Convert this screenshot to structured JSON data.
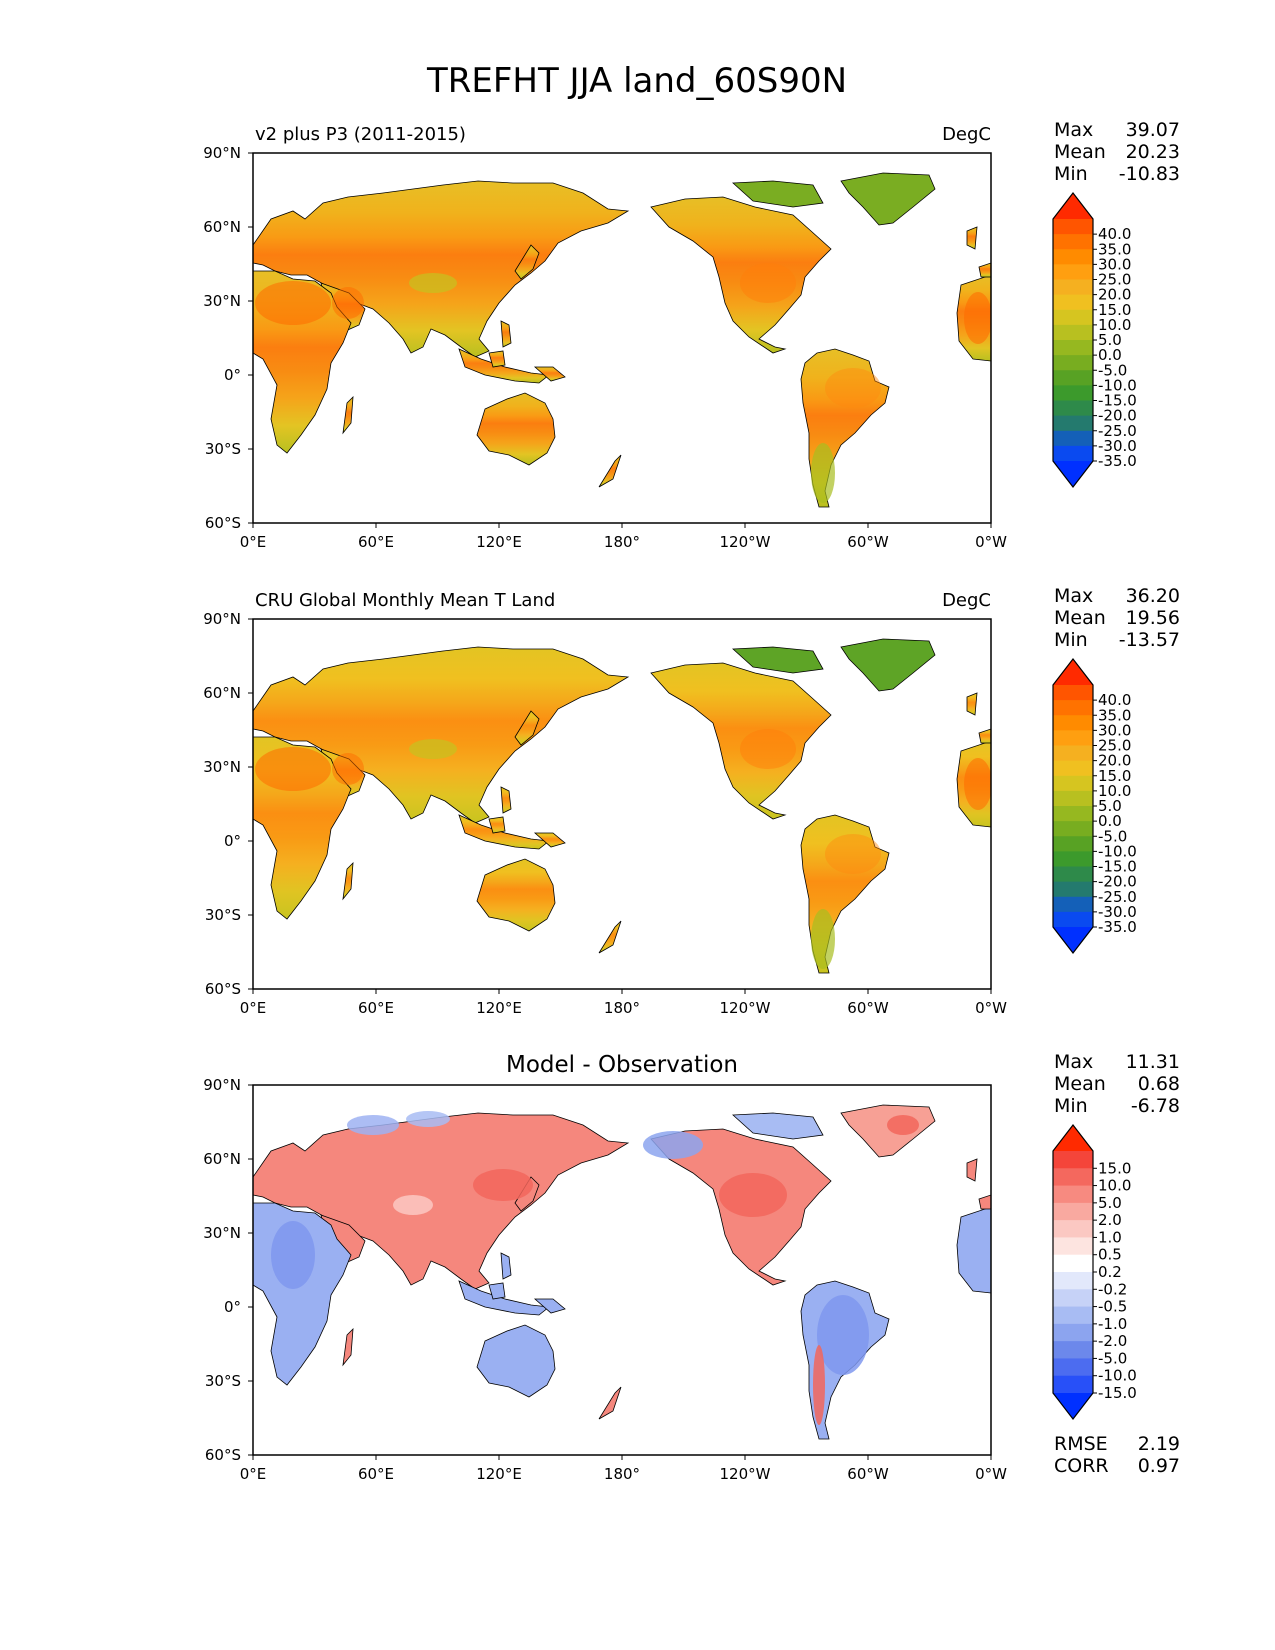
{
  "figure": {
    "title": "TREFHT JJA land_60S90N"
  },
  "chart_data": [
    {
      "type": "heatmap",
      "subtype": "map",
      "name": "model",
      "title_left": "v2 plus P3 (2011-2015)",
      "title_center": "",
      "units": "DegC",
      "stats": [
        {
          "label": "Max",
          "value": "39.07"
        },
        {
          "label": "Mean",
          "value": "20.23"
        },
        {
          "label": "Min",
          "value": "-10.83"
        }
      ],
      "colorbar": {
        "levels": [
          "40.0",
          "35.0",
          "30.0",
          "25.0",
          "20.0",
          "15.0",
          "10.0",
          "5.0",
          "0.0",
          "-5.0",
          "-10.0",
          "-15.0",
          "-20.0",
          "-25.0",
          "-30.0",
          "-35.0"
        ],
        "colors": [
          "#ff2a00",
          "#ff5500",
          "#ff7200",
          "#ff8b00",
          "#ff9f10",
          "#f5b020",
          "#f0c020",
          "#d6c520",
          "#b8c020",
          "#96b820",
          "#78ad20",
          "#58a224",
          "#3c9a2c",
          "#2e8a4a",
          "#247a6e",
          "#1460b8",
          "#0a4af0",
          "#0030ff"
        ]
      },
      "lat_ticks": [
        "90°N",
        "60°N",
        "30°N",
        "0°",
        "30°S",
        "60°S"
      ],
      "lon_ticks": [
        "0°E",
        "60°E",
        "120°E",
        "180°",
        "120°W",
        "60°W",
        "0°W"
      ]
    },
    {
      "type": "heatmap",
      "subtype": "map",
      "name": "observation",
      "title_left": "CRU Global Monthly Mean T Land",
      "title_center": "",
      "units": "DegC",
      "stats": [
        {
          "label": "Max",
          "value": "36.20"
        },
        {
          "label": "Mean",
          "value": "19.56"
        },
        {
          "label": "Min",
          "value": "-13.57"
        }
      ],
      "colorbar": {
        "levels": [
          "40.0",
          "35.0",
          "30.0",
          "25.0",
          "20.0",
          "15.0",
          "10.0",
          "5.0",
          "0.0",
          "-5.0",
          "-10.0",
          "-15.0",
          "-20.0",
          "-25.0",
          "-30.0",
          "-35.0"
        ],
        "colors": [
          "#ff2a00",
          "#ff5500",
          "#ff7200",
          "#ff8b00",
          "#ff9f10",
          "#f5b020",
          "#f0c020",
          "#d6c520",
          "#b8c020",
          "#96b820",
          "#78ad20",
          "#58a224",
          "#3c9a2c",
          "#2e8a4a",
          "#247a6e",
          "#1460b8",
          "#0a4af0",
          "#0030ff"
        ]
      },
      "lat_ticks": [
        "90°N",
        "60°N",
        "30°N",
        "0°",
        "30°S",
        "60°S"
      ],
      "lon_ticks": [
        "0°E",
        "60°E",
        "120°E",
        "180°",
        "120°W",
        "60°W",
        "0°W"
      ]
    },
    {
      "type": "heatmap",
      "subtype": "map",
      "name": "difference",
      "title_left": "",
      "title_center": "Model - Observation",
      "units": "",
      "stats": [
        {
          "label": "Max",
          "value": "11.31"
        },
        {
          "label": "Mean",
          "value": "0.68"
        },
        {
          "label": "Min",
          "value": "-6.78"
        }
      ],
      "colorbar": {
        "levels": [
          "15.0",
          "10.0",
          "5.0",
          "2.0",
          "1.0",
          "0.5",
          "0.2",
          "-0.2",
          "-0.5",
          "-1.0",
          "-2.0",
          "-5.0",
          "-10.0",
          "-15.0"
        ],
        "colors": [
          "#ff2a00",
          "#f4453a",
          "#f4685e",
          "#f78a80",
          "#f9a9a0",
          "#fbc8c2",
          "#fde4e0",
          "#ffffff",
          "#e2e8fb",
          "#c6d2f7",
          "#a8bcf3",
          "#8ca4ef",
          "#6c88eb",
          "#4c6cf0",
          "#2850f8",
          "#0030ff"
        ]
      },
      "bottom_stats": [
        {
          "label": "RMSE",
          "value": "2.19"
        },
        {
          "label": "CORR",
          "value": "0.97"
        }
      ],
      "lat_ticks": [
        "90°N",
        "60°N",
        "30°N",
        "0°",
        "30°S",
        "60°S"
      ],
      "lon_ticks": [
        "0°E",
        "60°E",
        "120°E",
        "180°",
        "120°W",
        "60°W",
        "0°W"
      ]
    }
  ]
}
